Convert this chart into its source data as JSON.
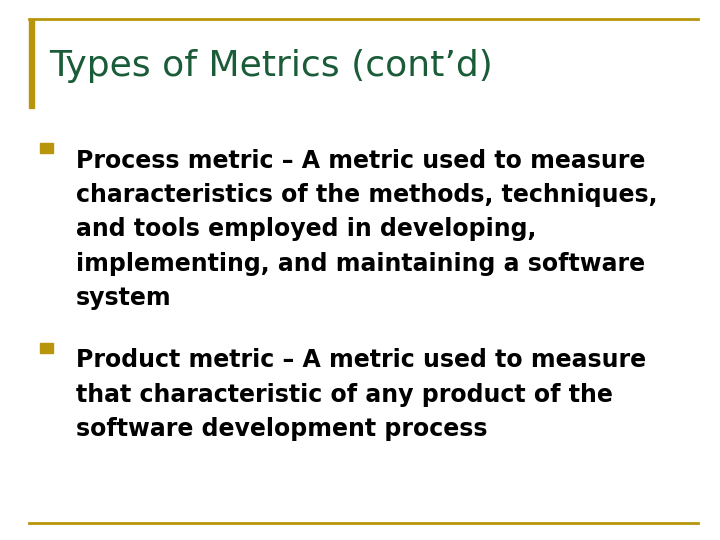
{
  "title": "Types of Metrics (cont’d)",
  "title_color": "#1a5c38",
  "title_fontsize": 26,
  "title_fontweight": "normal",
  "background_color": "#ffffff",
  "border_color": "#b8960c",
  "bullet_color": "#b8960c",
  "text_color": "#000000",
  "bullet_items": [
    "Process metric – A metric used to measure\ncharacteristics of the methods, techniques,\nand tools employed in developing,\nimplementing, and maintaining a software\nsystem",
    "Product metric – A metric used to measure\nthat characteristic of any product of the\nsoftware development process"
  ],
  "bullet_fontsize": 17,
  "bullet_fontweight": "bold",
  "left_bar_color": "#b8960c",
  "fig_width": 7.2,
  "fig_height": 5.4,
  "dpi": 100
}
